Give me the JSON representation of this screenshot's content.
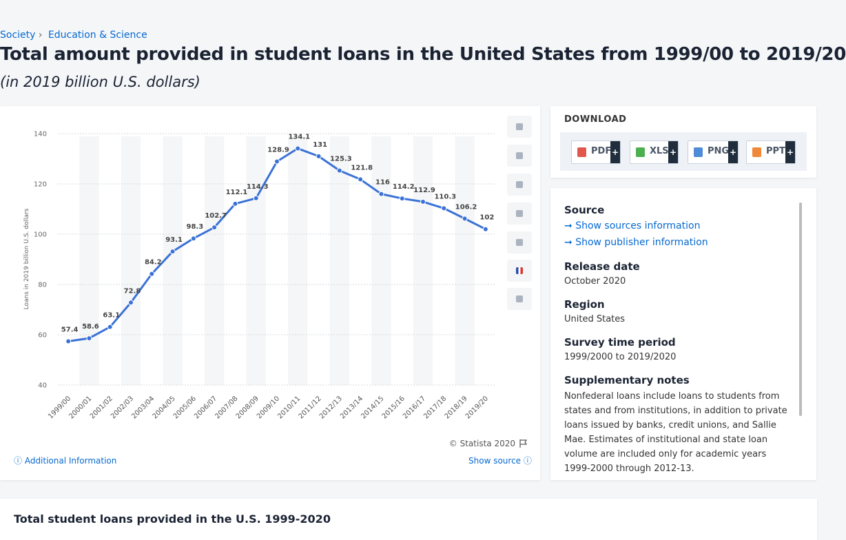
{
  "breadcrumb": [
    "Society",
    "Education & Science"
  ],
  "header": {
    "title": "Total amount provided in student loans in the United States from 1999/00 to 2019/20",
    "subtitle": "(in 2019 billion U.S. dollars)"
  },
  "chart_data": {
    "type": "line",
    "color": "#3a72d6",
    "grid": true,
    "y_label": "Loans in 2019 billion U.S. dollars",
    "categories": [
      "1999/00",
      "2000/01",
      "2001/02",
      "2002/03",
      "2003/04",
      "2004/05",
      "2005/06",
      "2006/07",
      "2007/08",
      "2008/09",
      "2009/10",
      "2010/11",
      "2011/12",
      "2012/13",
      "2013/14",
      "2014/15",
      "2015/16",
      "2016/17",
      "2017/18",
      "2018/19",
      "2019/20"
    ],
    "values": [
      57.4,
      58.6,
      63.1,
      72.8,
      84.2,
      93.1,
      98.3,
      102.7,
      112.1,
      114.3,
      128.9,
      134.1,
      131,
      125.3,
      121.8,
      116,
      114.2,
      112.9,
      110.3,
      106.2,
      102
    ],
    "ylim": [
      40,
      140
    ],
    "yticks": [
      40,
      60,
      80,
      100,
      120,
      140
    ],
    "credit": "© Statista 2020"
  },
  "chart_footer": {
    "additional": "Additional Information",
    "show_source": "Show source"
  },
  "download": {
    "title": "DOWNLOAD",
    "buttons": [
      "PDF",
      "XLS",
      "PNG",
      "PPT"
    ],
    "plus": "+"
  },
  "info": {
    "source_label": "Source",
    "show_sources": "Show sources information",
    "show_publisher": "Show publisher information",
    "release_label": "Release date",
    "release": "October 2020",
    "region_label": "Region",
    "region": "United States",
    "period_label": "Survey time period",
    "period": "1999/2000 to 2019/2020",
    "notes_label": "Supplementary notes",
    "notes": "Nonfederal loans include loans to students from states and from institutions, in addition to private loans issued by banks, credit unions, and Sallie Mae. Estimates of institutional and state loan volume are included only for academic years 1999-2000 through 2012-13."
  },
  "next_heading": "Total student loans provided in the U.S. 1999-2020"
}
